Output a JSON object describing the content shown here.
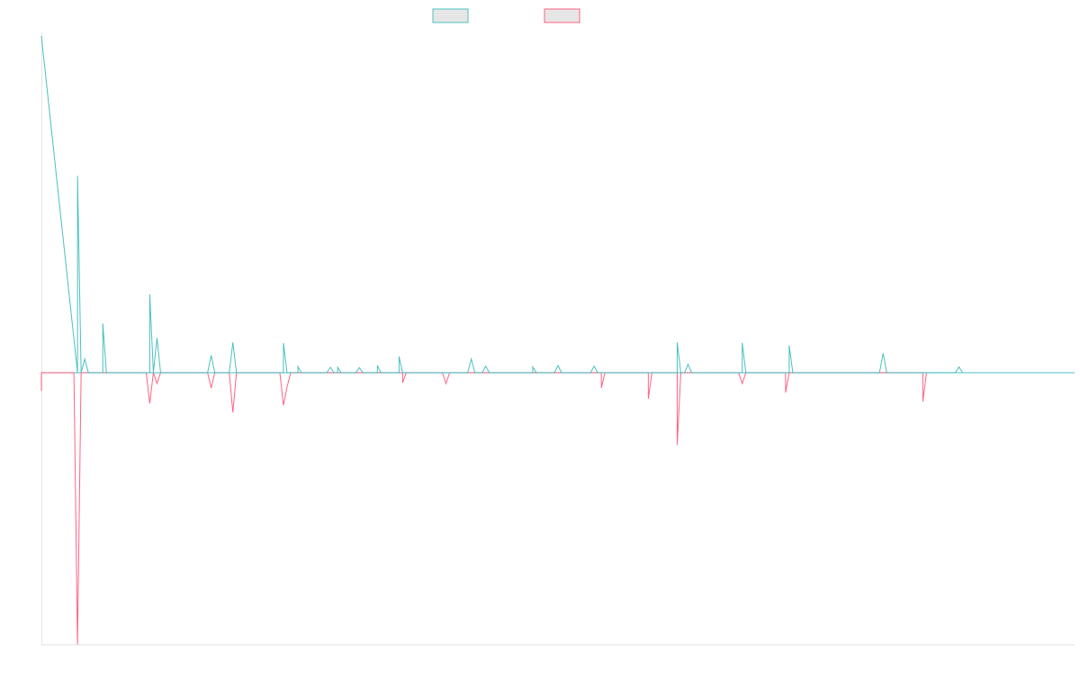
{
  "chart_data": {
    "type": "line",
    "title": "",
    "xlabel": "",
    "ylabel": "",
    "grid": false,
    "legend": {
      "position": "top-center"
    },
    "x_range": [
      0,
      286
    ],
    "y_range": [
      -752,
      942
    ],
    "baseline": 0,
    "series": [
      {
        "name": "",
        "color": "#4bc0c0",
        "fill": "#e6e6e6",
        "points": [
          [
            0,
            932
          ],
          [
            10,
            0
          ],
          [
            10,
            545
          ],
          [
            11,
            0
          ],
          [
            12,
            38
          ],
          [
            13,
            0
          ],
          [
            17,
            0
          ],
          [
            17,
            136
          ],
          [
            18,
            0
          ],
          [
            30,
            0
          ],
          [
            30,
            217
          ],
          [
            31,
            0
          ],
          [
            32,
            96
          ],
          [
            33,
            0
          ],
          [
            46,
            0
          ],
          [
            47,
            48
          ],
          [
            48,
            0
          ],
          [
            52,
            0
          ],
          [
            53,
            84
          ],
          [
            54,
            0
          ],
          [
            67,
            0
          ],
          [
            67,
            82
          ],
          [
            68,
            0
          ],
          [
            71,
            0
          ],
          [
            71,
            17
          ],
          [
            72,
            0
          ],
          [
            79,
            0
          ],
          [
            80,
            15
          ],
          [
            81,
            0
          ],
          [
            82,
            0
          ],
          [
            82,
            15
          ],
          [
            83,
            0
          ],
          [
            87,
            0
          ],
          [
            88,
            14
          ],
          [
            89,
            0
          ],
          [
            93,
            0
          ],
          [
            93,
            20
          ],
          [
            94,
            0
          ],
          [
            99,
            0
          ],
          [
            99,
            45
          ],
          [
            100,
            0
          ],
          [
            118,
            0
          ],
          [
            119,
            38
          ],
          [
            120,
            0
          ],
          [
            122,
            0
          ],
          [
            123,
            18
          ],
          [
            124,
            0
          ],
          [
            136,
            0
          ],
          [
            136,
            16
          ],
          [
            137,
            0
          ],
          [
            142,
            0
          ],
          [
            143,
            20
          ],
          [
            144,
            0
          ],
          [
            152,
            0
          ],
          [
            153,
            18
          ],
          [
            154,
            0
          ],
          [
            176,
            0
          ],
          [
            176,
            84
          ],
          [
            177,
            0
          ],
          [
            178,
            0
          ],
          [
            179,
            23
          ],
          [
            180,
            0
          ],
          [
            194,
            0
          ],
          [
            194,
            83
          ],
          [
            195,
            0
          ],
          [
            207,
            0
          ],
          [
            207,
            76
          ],
          [
            208,
            0
          ],
          [
            232,
            0
          ],
          [
            233,
            54
          ],
          [
            234,
            0
          ],
          [
            253,
            0
          ],
          [
            254,
            16
          ],
          [
            255,
            0
          ]
        ]
      },
      {
        "name": "",
        "color": "#ff6384",
        "fill": "#e6e6e6",
        "points": [
          [
            0,
            -50
          ],
          [
            0,
            0
          ],
          [
            9,
            0
          ],
          [
            10,
            -752
          ],
          [
            11,
            0
          ],
          [
            29,
            0
          ],
          [
            30,
            -85
          ],
          [
            31,
            0
          ],
          [
            31,
            0
          ],
          [
            32,
            -30
          ],
          [
            33,
            0
          ],
          [
            46,
            0
          ],
          [
            47,
            -42
          ],
          [
            48,
            0
          ],
          [
            52,
            0
          ],
          [
            53,
            -110
          ],
          [
            54,
            0
          ],
          [
            66,
            0
          ],
          [
            67,
            -90
          ],
          [
            68,
            -40
          ],
          [
            69,
            0
          ],
          [
            100,
            0
          ],
          [
            100,
            -28
          ],
          [
            101,
            0
          ],
          [
            111,
            0
          ],
          [
            112,
            -30
          ],
          [
            113,
            0
          ],
          [
            155,
            0
          ],
          [
            155,
            -42
          ],
          [
            156,
            0
          ],
          [
            168,
            0
          ],
          [
            168,
            -72
          ],
          [
            169,
            0
          ],
          [
            176,
            0
          ],
          [
            176,
            -200
          ],
          [
            177,
            0
          ],
          [
            193,
            0
          ],
          [
            194,
            -30
          ],
          [
            195,
            0
          ],
          [
            206,
            0
          ],
          [
            206,
            -55
          ],
          [
            207,
            0
          ],
          [
            244,
            0
          ],
          [
            244,
            -80
          ],
          [
            245,
            0
          ]
        ]
      }
    ]
  }
}
